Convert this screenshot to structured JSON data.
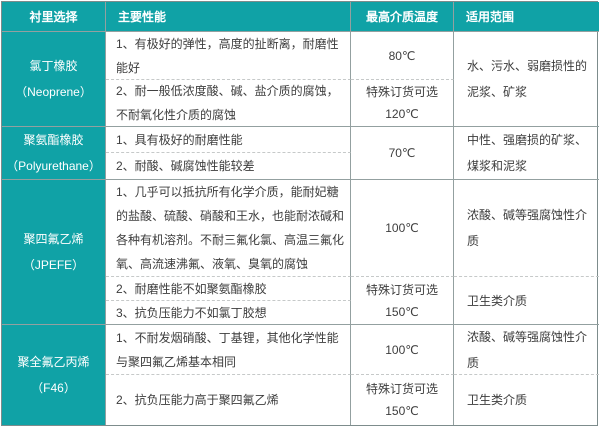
{
  "header": {
    "col1": "衬里选择",
    "col2": "主要性能",
    "col3": "最高介质温度",
    "col4": "适用范围"
  },
  "rows": [
    {
      "name": "氯丁橡胶",
      "name_en": "（Neoprene）",
      "props": [
        "1、有极好的弹性，高度的扯断离，耐磨性能好",
        "2、耐一般低浓度酸、碱、盐介质的腐蚀，不耐氧化性介质的腐蚀"
      ],
      "temp1": "80℃",
      "temp2_label": "特殊订货可选",
      "temp2_value": "120℃",
      "range1": "水、污水、弱磨损性的泥浆、矿浆"
    },
    {
      "name": "聚氨酯橡胶",
      "name_en": "（Polyurethane）",
      "props": [
        "1、具有极好的耐磨性能",
        "2、耐酸、碱腐蚀性能较差"
      ],
      "temp1": "70℃",
      "range1": "中性、强磨损的矿浆、煤浆和泥浆"
    },
    {
      "name": "聚四氟乙烯",
      "name_en": "（JPEFE）",
      "props": [
        "1、几乎可以抵抗所有化学介质，能耐妃糖的盐酸、硫酸、硝酸和王水，也能耐浓碱和各种有机溶剂。不耐三氟化氯、高温三氟化氧、高流速沸氟、液氧、臭氧的腐蚀",
        "2、耐磨性能不如聚氨酯橡胶",
        "3、抗负压能力不如氯丁胶想"
      ],
      "temp1": "100℃",
      "temp2_label": "特殊订货可选",
      "temp2_value": "150℃",
      "range1": "浓酸、碱等强腐蚀性介质",
      "range2": "卫生类介质"
    },
    {
      "name": "聚全氟乙丙烯",
      "name_en": "（F46）",
      "props": [
        "1、不耐发烟硝酸、丁基锂，其他化学性能与聚四氟乙烯基本相同",
        "2、抗负压能力高于聚四氟乙烯"
      ],
      "temp1": "100℃",
      "temp2_label": "特殊订货可选",
      "temp2_value": "150℃",
      "range1": "浓酸、碱等强腐蚀性介质",
      "range2": "卫生类介质"
    }
  ],
  "colors": {
    "accent_teal": "#10a2a6",
    "border": "#93a0a0",
    "dashed": "#c6c9c9",
    "text": "#3d3d3d"
  }
}
